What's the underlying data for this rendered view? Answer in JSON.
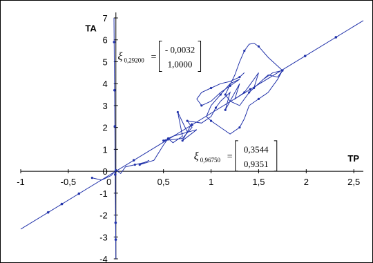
{
  "chart_data": {
    "type": "line",
    "title": "",
    "xlabel": "TP",
    "ylabel": "TA",
    "xlim": [
      -1,
      2.6
    ],
    "ylim": [
      -4,
      7
    ],
    "x_ticks": [
      "-1",
      "-0,5",
      "0",
      "0,5",
      "1",
      "1,5",
      "2",
      "2,5"
    ],
    "y_ticks": [
      "-4",
      "-3",
      "-2",
      "-1",
      "0",
      "1",
      "2",
      "3",
      "4",
      "5",
      "6",
      "7"
    ],
    "grid": false,
    "legend": "none",
    "line_color": "#2233aa",
    "series": [
      {
        "x": [
          -1,
          2.6
        ],
        "y": [
          -2.64,
          6.88
        ]
      },
      {
        "x": [
          0.0,
          -0.02
        ],
        "y": [
          -4,
          7
        ]
      },
      {
        "x": [
          -0.25,
          -0.15,
          -0.05,
          0.0,
          0.05,
          0.1,
          0.2,
          0.3,
          0.35,
          0.25,
          0.4,
          0.5,
          0.55,
          0.6,
          0.7,
          0.65,
          0.75,
          0.8,
          0.7,
          0.85,
          0.6,
          0.5,
          0.7,
          0.8,
          0.75,
          0.9,
          1.0,
          1.05,
          1.1,
          1.2,
          1.15,
          1.3,
          1.25,
          1.35,
          1.4,
          1.5,
          1.45,
          1.6,
          1.7,
          1.75,
          1.65,
          1.55,
          1.4,
          1.3,
          1.2,
          1.15,
          1.25,
          1.3,
          1.35,
          1.4,
          1.45,
          1.5,
          1.6,
          1.7,
          1.75,
          1.7,
          1.6,
          1.5,
          1.4,
          1.35,
          1.3,
          1.2,
          1.1,
          1.0,
          0.95,
          1.0,
          1.1,
          1.2,
          1.3,
          1.2,
          1.1,
          1.0,
          0.9,
          0.85,
          0.9,
          1.0,
          1.1,
          1.2,
          1.3,
          1.35
        ],
        "y": [
          -0.3,
          -0.4,
          -0.2,
          0.05,
          -0.1,
          0.2,
          0.3,
          0.4,
          0.5,
          0.3,
          0.5,
          1.2,
          1.5,
          1.3,
          1.6,
          2.7,
          1.8,
          2.2,
          1.4,
          1.9,
          1.6,
          1.4,
          1.5,
          2.0,
          2.3,
          2.2,
          2.5,
          2.9,
          3.2,
          3.6,
          2.8,
          4.0,
          3.3,
          3.6,
          3.9,
          4.5,
          3.8,
          4.4,
          4.3,
          4.6,
          4.5,
          4.2,
          3.6,
          3.0,
          3.2,
          3.5,
          4.4,
          5.0,
          5.5,
          5.8,
          5.85,
          5.7,
          5.2,
          4.8,
          4.6,
          4.2,
          3.6,
          3.3,
          3.0,
          2.4,
          2.0,
          1.7,
          2.0,
          2.3,
          2.5,
          3.0,
          3.5,
          4.0,
          4.2,
          3.9,
          3.6,
          3.2,
          3.0,
          3.3,
          3.6,
          3.8,
          4.0,
          4.1,
          4.3,
          4.5
        ]
      }
    ],
    "annotations": [
      {
        "label_main": "ξ",
        "label_sub": "0,29200",
        "matrix": [
          "- 0,0032",
          "1,0000"
        ],
        "x": 0.02,
        "y": 5.25
      },
      {
        "label_main": "ξ",
        "label_sub": "0,96750",
        "matrix": [
          "0,3544",
          "0,9351"
        ],
        "x": 0.82,
        "y": 0.7
      }
    ]
  }
}
